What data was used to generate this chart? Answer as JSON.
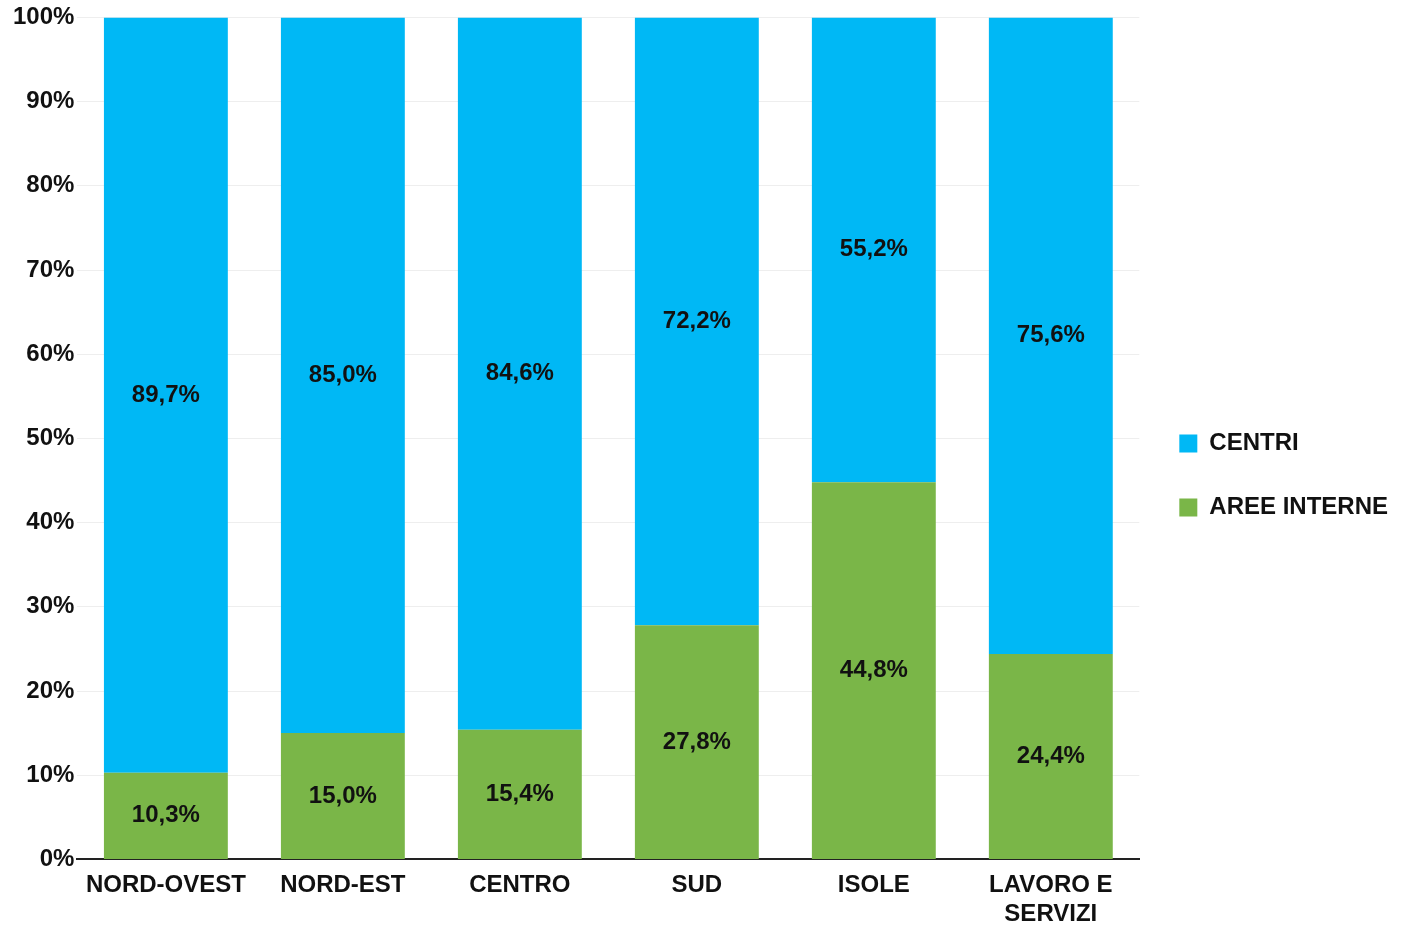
{
  "chart_data": {
    "type": "bar",
    "stacked": true,
    "categories": [
      "NORD-OVEST",
      "NORD-EST",
      "CENTRO",
      "SUD",
      "ISOLE",
      "LAVORO E SERVIZI"
    ],
    "series": [
      {
        "name": "AREE INTERNE",
        "color": "#7ab648",
        "values": [
          10.3,
          15.0,
          15.4,
          27.8,
          44.8,
          24.4
        ],
        "value_labels": [
          "10,3%",
          "15,0%",
          "15,4%",
          "27,8%",
          "44,8%",
          "24,4%"
        ]
      },
      {
        "name": "CENTRI",
        "color": "#00b8f5",
        "values": [
          89.7,
          85.0,
          84.6,
          72.2,
          55.2,
          75.6
        ],
        "value_labels": [
          "89,7%",
          "85,0%",
          "84,6%",
          "72,2%",
          "55,2%",
          "75,6%"
        ]
      }
    ],
    "ylim": [
      0,
      100
    ],
    "yticks": [
      {
        "value": 0,
        "label": "0%"
      },
      {
        "value": 10,
        "label": "10%"
      },
      {
        "value": 20,
        "label": "20%"
      },
      {
        "value": 30,
        "label": "30%"
      },
      {
        "value": 40,
        "label": "40%"
      },
      {
        "value": 50,
        "label": "50%"
      },
      {
        "value": 60,
        "label": "60%"
      },
      {
        "value": 70,
        "label": "70%"
      },
      {
        "value": 80,
        "label": "80%"
      },
      {
        "value": 90,
        "label": "90%"
      },
      {
        "value": 100,
        "label": "100%"
      }
    ],
    "grid": "y",
    "legend": "right"
  }
}
